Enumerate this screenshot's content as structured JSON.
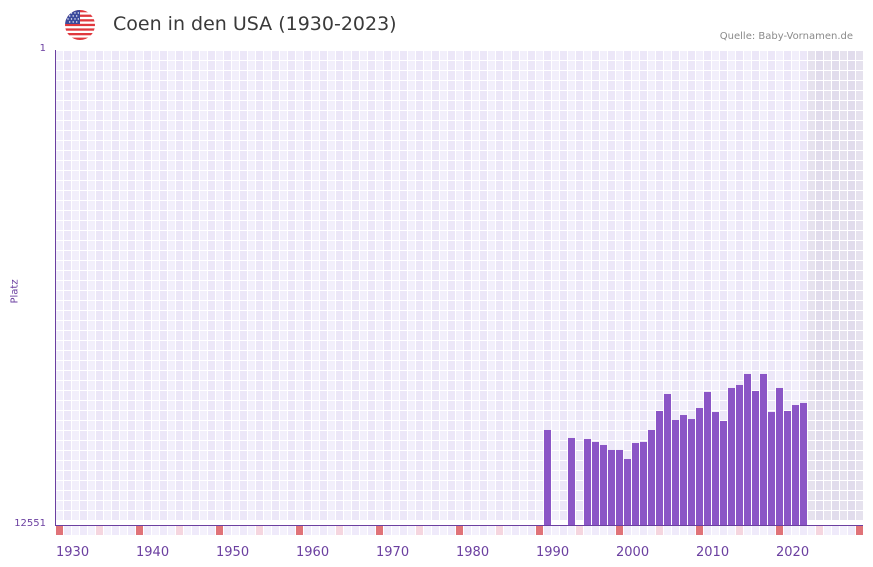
{
  "header": {
    "title": "Coen in den USA (1930-2023)",
    "source": "Quelle: Baby-Vornamen.de",
    "flag_icon": "us-flag-icon"
  },
  "colors": {
    "bar": "#8b56c6",
    "axis": "#6b3fa0",
    "grid_cell_a": "#f2effb",
    "grid_cell_b": "#ece7f8",
    "future_shade_a": "#e6e2ee",
    "future_shade_b": "#e1dcec",
    "decade_marker": "#e07378",
    "half_decade_marker": "#f5d6df"
  },
  "chart_data": {
    "type": "bar",
    "title": "Coen in den USA (1930-2023)",
    "xlabel": "",
    "ylabel": "Platz",
    "y_inverted": true,
    "ylim": [
      1,
      12551
    ],
    "xlim": [
      1930,
      2030
    ],
    "x_tick_labels": [
      "1930",
      "1940",
      "1950",
      "1960",
      "1970",
      "1980",
      "1990",
      "2000",
      "2010",
      "2020"
    ],
    "y_tick_labels": [
      "1",
      "12551"
    ],
    "future_shaded_from": 2024,
    "grid": true,
    "categories": [
      1991,
      1994,
      1996,
      1997,
      1998,
      1999,
      2000,
      2001,
      2002,
      2003,
      2004,
      2005,
      2006,
      2007,
      2008,
      2009,
      2010,
      2011,
      2012,
      2013,
      2014,
      2015,
      2016,
      2017,
      2018,
      2019,
      2020,
      2021,
      2022,
      2023
    ],
    "values": [
      10041,
      10252,
      10279,
      10358,
      10437,
      10569,
      10569,
      10807,
      10385,
      10358,
      10041,
      9539,
      9090,
      9777,
      9645,
      9751,
      9460,
      9037,
      9566,
      9803,
      8931,
      8852,
      8561,
      9011,
      8561,
      9566,
      8931,
      9539,
      9381,
      9328
    ]
  },
  "axis": {
    "y_label": "Platz",
    "y_top": "1",
    "y_bottom": "12551"
  }
}
